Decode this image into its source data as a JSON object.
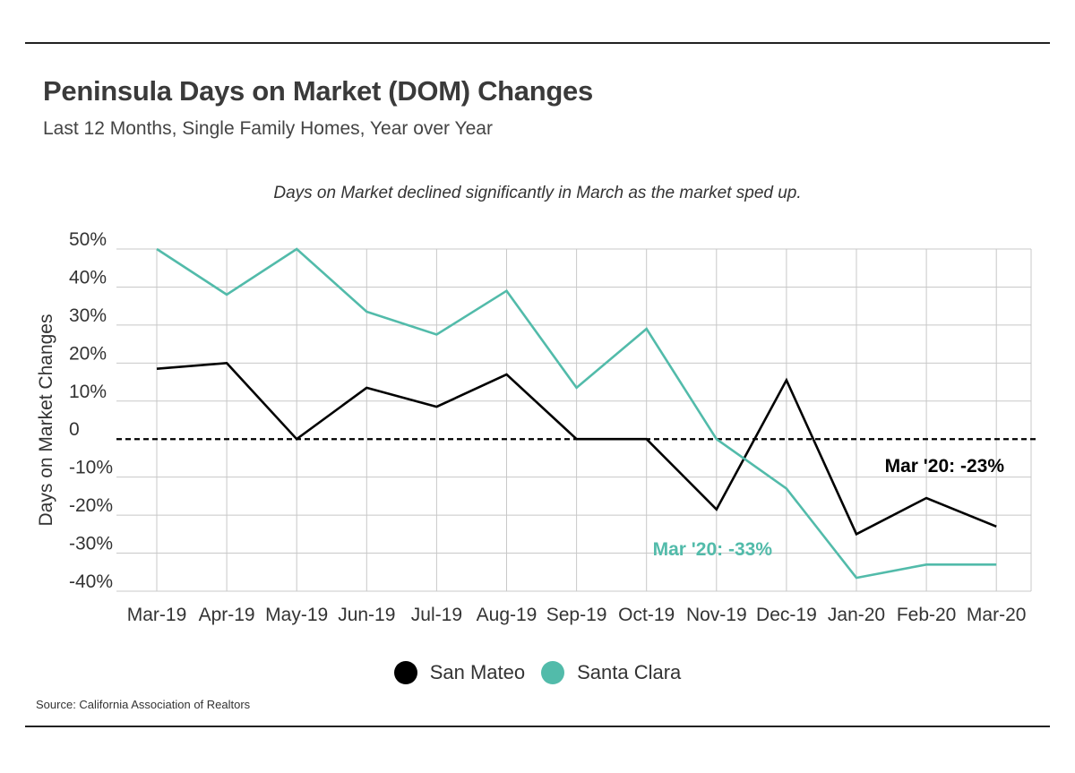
{
  "header": {
    "title": "Peninsula Days on Market (DOM) Changes",
    "subtitle": "Last 12 Months, Single Family Homes, Year over Year"
  },
  "footer": {
    "source": "Source:  California Association of Realtors"
  },
  "chart_data": {
    "type": "line",
    "annotation_note": "Days on Market declined significantly in March as the market sped up.",
    "ylabel": "Days on Market Changes",
    "xlabel": "",
    "categories": [
      "Mar-19",
      "Apr-19",
      "May-19",
      "Jun-19",
      "Jul-19",
      "Aug-19",
      "Sep-19",
      "Oct-19",
      "Nov-19",
      "Dec-19",
      "Jan-20",
      "Feb-20",
      "Mar-20"
    ],
    "yticks": [
      "50%",
      "40%",
      "30%",
      "20%",
      "10%",
      "0",
      "-10%",
      "-20%",
      "-30%",
      "-40%"
    ],
    "ylim": [
      -40,
      50
    ],
    "grid": true,
    "zero_line": "dashed",
    "series": [
      {
        "name": "San Mateo",
        "color": "#000000",
        "values": [
          18.5,
          20,
          0,
          13.5,
          8.5,
          17,
          0,
          0,
          -18.5,
          15.5,
          -25,
          -15.5,
          -23
        ]
      },
      {
        "name": "Santa Clara",
        "color": "#52bbaa",
        "values": [
          50,
          38,
          50,
          33.5,
          27.5,
          39,
          13.5,
          29,
          0,
          -13,
          -36.5,
          -33,
          -33
        ]
      }
    ],
    "end_labels": [
      {
        "series": "San Mateo",
        "text": "Mar '20: -23%",
        "color": "#000000"
      },
      {
        "series": "Santa Clara",
        "text": "Mar '20: -33%",
        "color": "#52bbaa"
      }
    ],
    "legend": "bottom-center"
  }
}
